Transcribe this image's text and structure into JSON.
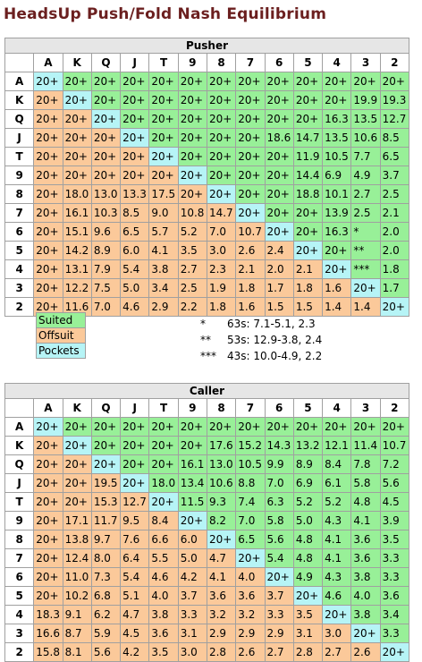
{
  "title": "HeadsUp Push/Fold Nash Equilibrium",
  "ranks": [
    "A",
    "K",
    "Q",
    "J",
    "T",
    "9",
    "8",
    "7",
    "6",
    "5",
    "4",
    "3",
    "2"
  ],
  "pusher": {
    "caption": "Pusher",
    "rows": [
      [
        "20+",
        "20+",
        "20+",
        "20+",
        "20+",
        "20+",
        "20+",
        "20+",
        "20+",
        "20+",
        "20+",
        "20+",
        "20+"
      ],
      [
        "20+",
        "20+",
        "20+",
        "20+",
        "20+",
        "20+",
        "20+",
        "20+",
        "20+",
        "20+",
        "20+",
        "19.9",
        "19.3"
      ],
      [
        "20+",
        "20+",
        "20+",
        "20+",
        "20+",
        "20+",
        "20+",
        "20+",
        "20+",
        "20+",
        "16.3",
        "13.5",
        "12.7"
      ],
      [
        "20+",
        "20+",
        "20+",
        "20+",
        "20+",
        "20+",
        "20+",
        "20+",
        "18.6",
        "14.7",
        "13.5",
        "10.6",
        "8.5"
      ],
      [
        "20+",
        "20+",
        "20+",
        "20+",
        "20+",
        "20+",
        "20+",
        "20+",
        "20+",
        "11.9",
        "10.5",
        "7.7",
        "6.5"
      ],
      [
        "20+",
        "20+",
        "20+",
        "20+",
        "20+",
        "20+",
        "20+",
        "20+",
        "20+",
        "14.4",
        "6.9",
        "4.9",
        "3.7"
      ],
      [
        "20+",
        "18.0",
        "13.0",
        "13.3",
        "17.5",
        "20+",
        "20+",
        "20+",
        "20+",
        "18.8",
        "10.1",
        "2.7",
        "2.5"
      ],
      [
        "20+",
        "16.1",
        "10.3",
        "8.5",
        "9.0",
        "10.8",
        "14.7",
        "20+",
        "20+",
        "20+",
        "13.9",
        "2.5",
        "2.1"
      ],
      [
        "20+",
        "15.1",
        "9.6",
        "6.5",
        "5.7",
        "5.2",
        "7.0",
        "10.7",
        "20+",
        "20+",
        "16.3",
        "*",
        "2.0"
      ],
      [
        "20+",
        "14.2",
        "8.9",
        "6.0",
        "4.1",
        "3.5",
        "3.0",
        "2.6",
        "2.4",
        "20+",
        "20+",
        "**",
        "2.0"
      ],
      [
        "20+",
        "13.1",
        "7.9",
        "5.4",
        "3.8",
        "2.7",
        "2.3",
        "2.1",
        "2.0",
        "2.1",
        "20+",
        "***",
        "1.8"
      ],
      [
        "20+",
        "12.2",
        "7.5",
        "5.0",
        "3.4",
        "2.5",
        "1.9",
        "1.8",
        "1.7",
        "1.8",
        "1.6",
        "20+",
        "1.7"
      ],
      [
        "20+",
        "11.6",
        "7.0",
        "4.6",
        "2.9",
        "2.2",
        "1.8",
        "1.6",
        "1.5",
        "1.5",
        "1.4",
        "1.4",
        "20+"
      ]
    ]
  },
  "caller": {
    "caption": "Caller",
    "rows": [
      [
        "20+",
        "20+",
        "20+",
        "20+",
        "20+",
        "20+",
        "20+",
        "20+",
        "20+",
        "20+",
        "20+",
        "20+",
        "20+"
      ],
      [
        "20+",
        "20+",
        "20+",
        "20+",
        "20+",
        "20+",
        "17.6",
        "15.2",
        "14.3",
        "13.2",
        "12.1",
        "11.4",
        "10.7"
      ],
      [
        "20+",
        "20+",
        "20+",
        "20+",
        "20+",
        "16.1",
        "13.0",
        "10.5",
        "9.9",
        "8.9",
        "8.4",
        "7.8",
        "7.2"
      ],
      [
        "20+",
        "20+",
        "19.5",
        "20+",
        "18.0",
        "13.4",
        "10.6",
        "8.8",
        "7.0",
        "6.9",
        "6.1",
        "5.8",
        "5.6"
      ],
      [
        "20+",
        "20+",
        "15.3",
        "12.7",
        "20+",
        "11.5",
        "9.3",
        "7.4",
        "6.3",
        "5.2",
        "5.2",
        "4.8",
        "4.5"
      ],
      [
        "20+",
        "17.1",
        "11.7",
        "9.5",
        "8.4",
        "20+",
        "8.2",
        "7.0",
        "5.8",
        "5.0",
        "4.3",
        "4.1",
        "3.9"
      ],
      [
        "20+",
        "13.8",
        "9.7",
        "7.6",
        "6.6",
        "6.0",
        "20+",
        "6.5",
        "5.6",
        "4.8",
        "4.1",
        "3.6",
        "3.5"
      ],
      [
        "20+",
        "12.4",
        "8.0",
        "6.4",
        "5.5",
        "5.0",
        "4.7",
        "20+",
        "5.4",
        "4.8",
        "4.1",
        "3.6",
        "3.3"
      ],
      [
        "20+",
        "11.0",
        "7.3",
        "5.4",
        "4.6",
        "4.2",
        "4.1",
        "4.0",
        "20+",
        "4.9",
        "4.3",
        "3.8",
        "3.3"
      ],
      [
        "20+",
        "10.2",
        "6.8",
        "5.1",
        "4.0",
        "3.7",
        "3.6",
        "3.6",
        "3.7",
        "20+",
        "4.6",
        "4.0",
        "3.6"
      ],
      [
        "18.3",
        "9.1",
        "6.2",
        "4.7",
        "3.8",
        "3.3",
        "3.2",
        "3.2",
        "3.3",
        "3.5",
        "20+",
        "3.8",
        "3.4"
      ],
      [
        "16.6",
        "8.7",
        "5.9",
        "4.5",
        "3.6",
        "3.1",
        "2.9",
        "2.9",
        "2.9",
        "3.1",
        "3.0",
        "20+",
        "3.3"
      ],
      [
        "15.8",
        "8.1",
        "5.6",
        "4.2",
        "3.5",
        "3.0",
        "2.8",
        "2.6",
        "2.7",
        "2.8",
        "2.7",
        "2.6",
        "20+"
      ]
    ]
  },
  "legend": [
    "Suited",
    "Offsuit",
    "Pockets"
  ],
  "notes": [
    {
      "mark": "*",
      "text": "63s: 7.1-5.1, 2.3"
    },
    {
      "mark": "**",
      "text": "53s: 12.9-3.8, 2.4"
    },
    {
      "mark": "***",
      "text": "43s: 10.0-4.9, 2.2"
    }
  ],
  "colors": {
    "suited": "#98f098",
    "offsuit": "#fbc99a",
    "pockets": "#b6f4f6",
    "title": "#6b1f1f"
  }
}
